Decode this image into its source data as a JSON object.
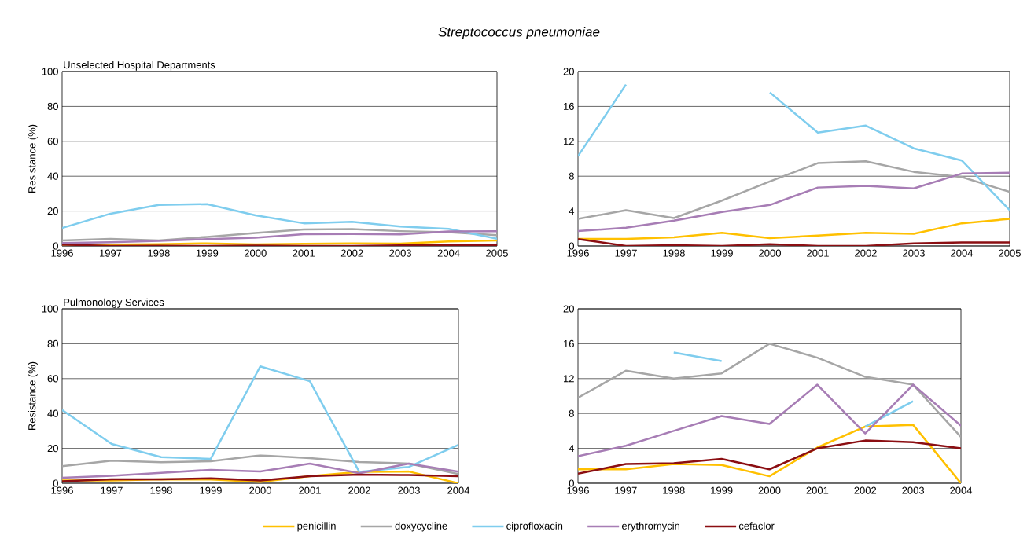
{
  "chart_data": [
    {
      "type": "line",
      "title": "Streptococcus pneumoniae",
      "subtitle": "Unselected Hospital Departments",
      "ylabel": "Resistance (%)",
      "x": [
        1996,
        1997,
        1998,
        1999,
        2000,
        2001,
        2002,
        2003,
        2004,
        2005
      ],
      "xlim": [
        1996,
        2005
      ],
      "xticks": [
        1996,
        1997,
        1998,
        1999,
        2000,
        2001,
        2002,
        2003,
        2004,
        2005
      ],
      "ylim": [
        0,
        100
      ],
      "yticks": [
        0,
        20,
        40,
        60,
        80,
        100
      ],
      "grid": "y",
      "series": [
        {
          "color": "#ffc000",
          "values": [
            0.8,
            0.8,
            1.0,
            1.5,
            0.9,
            1.2,
            1.5,
            1.4,
            2.6,
            3.1
          ]
        },
        {
          "color": "#a6a6a6",
          "values": [
            3.1,
            4.1,
            3.2,
            5.2,
            7.4,
            9.5,
            9.7,
            8.5,
            7.9,
            6.2
          ]
        },
        {
          "color": "#7fcdee",
          "values": [
            10.3,
            18.5,
            23.5,
            24,
            17.6,
            13.0,
            13.8,
            11.2,
            9.8,
            4.1
          ]
        },
        {
          "color": "#a77db5",
          "values": [
            1.7,
            2.1,
            2.9,
            3.9,
            4.7,
            6.7,
            6.9,
            6.6,
            8.3,
            8.4
          ]
        },
        {
          "color": "#8b0e12",
          "values": [
            0.8,
            0,
            0.1,
            0,
            0.2,
            0,
            0,
            0.3,
            0.4,
            0.4
          ]
        }
      ]
    },
    {
      "type": "line",
      "x": [
        1996,
        1997,
        1998,
        1999,
        2000,
        2001,
        2002,
        2003,
        2004,
        2005
      ],
      "xlim": [
        1996,
        2005
      ],
      "xticks": [
        1996,
        1997,
        1998,
        1999,
        2000,
        2001,
        2002,
        2003,
        2004,
        2005
      ],
      "ylim": [
        0,
        20
      ],
      "yticks": [
        0,
        4,
        8,
        12,
        16,
        20
      ],
      "grid": "y",
      "series": [
        {
          "color": "#ffc000",
          "values": [
            0.8,
            0.8,
            1.0,
            1.5,
            0.9,
            1.2,
            1.5,
            1.4,
            2.6,
            3.1
          ]
        },
        {
          "color": "#a6a6a6",
          "values": [
            3.1,
            4.1,
            3.2,
            5.2,
            7.4,
            9.5,
            9.7,
            8.5,
            7.9,
            6.2
          ]
        },
        {
          "color": "#7fcdee",
          "values": [
            10.3,
            18.5,
            null,
            null,
            17.6,
            13.0,
            13.8,
            11.2,
            9.8,
            4.1
          ]
        },
        {
          "color": "#a77db5",
          "values": [
            1.7,
            2.1,
            2.9,
            3.9,
            4.7,
            6.7,
            6.9,
            6.6,
            8.3,
            8.4
          ]
        },
        {
          "color": "#8b0e12",
          "values": [
            0.8,
            0,
            0.1,
            0,
            0.2,
            0,
            0,
            0.3,
            0.4,
            0.4
          ]
        }
      ]
    },
    {
      "type": "line",
      "title": "Pulmonology Services",
      "ylabel": "Resistance (%)",
      "x": [
        1996,
        1997,
        1998,
        1999,
        2000,
        2001,
        2002,
        2003,
        2004
      ],
      "xlim": [
        1996,
        2004
      ],
      "xticks": [
        1996,
        1997,
        1998,
        1999,
        2000,
        2001,
        2002,
        2003,
        2004
      ],
      "ylim": [
        0,
        100
      ],
      "yticks": [
        0,
        20,
        40,
        60,
        80,
        100
      ],
      "grid": "y",
      "series": [
        {
          "color": "#ffc000",
          "values": [
            1.6,
            1.6,
            2.2,
            2.1,
            0.8,
            4.1,
            6.5,
            6.7,
            0
          ]
        },
        {
          "color": "#a6a6a6",
          "values": [
            9.8,
            12.9,
            12.0,
            12.6,
            16.0,
            14.4,
            12.2,
            11.3,
            5.3
          ]
        },
        {
          "color": "#7fcdee",
          "values": [
            42,
            22.5,
            15.0,
            14.0,
            67,
            58.5,
            6.5,
            9.4,
            22
          ]
        },
        {
          "color": "#a77db5",
          "values": [
            3.1,
            4.3,
            6.0,
            7.7,
            6.8,
            11.3,
            5.7,
            11.3,
            6.6
          ]
        },
        {
          "color": "#8b0e12",
          "values": [
            1.1,
            2.2,
            2.3,
            2.8,
            1.6,
            4.0,
            4.9,
            4.7,
            4.0
          ]
        }
      ]
    },
    {
      "type": "line",
      "x": [
        1996,
        1997,
        1998,
        1999,
        2000,
        2001,
        2002,
        2003,
        2004
      ],
      "xlim": [
        1996,
        2004
      ],
      "xticks": [
        1996,
        1997,
        1998,
        1999,
        2000,
        2001,
        2002,
        2003,
        2004
      ],
      "ylim": [
        0,
        20
      ],
      "yticks": [
        0,
        4,
        8,
        12,
        16,
        20
      ],
      "grid": "y",
      "legend": "bottom",
      "series": [
        {
          "name": "penicillin",
          "color": "#ffc000",
          "values": [
            1.6,
            1.6,
            2.2,
            2.1,
            0.8,
            4.1,
            6.5,
            6.7,
            0
          ]
        },
        {
          "name": "doxycycline",
          "color": "#a6a6a6",
          "values": [
            9.8,
            12.9,
            12.0,
            12.6,
            16.0,
            14.4,
            12.2,
            11.3,
            5.3
          ]
        },
        {
          "name": "ciprofloxacin",
          "color": "#7fcdee",
          "values": [
            null,
            null,
            15.0,
            14.0,
            null,
            null,
            6.5,
            9.4,
            null
          ]
        },
        {
          "name": "erythromycin",
          "color": "#a77db5",
          "values": [
            3.1,
            4.3,
            6.0,
            7.7,
            6.8,
            11.3,
            5.7,
            11.3,
            6.6
          ]
        },
        {
          "name": "cefaclor",
          "color": "#8b0e12",
          "values": [
            1.1,
            2.2,
            2.3,
            2.8,
            1.6,
            4.0,
            4.9,
            4.7,
            4.0
          ]
        }
      ]
    }
  ]
}
